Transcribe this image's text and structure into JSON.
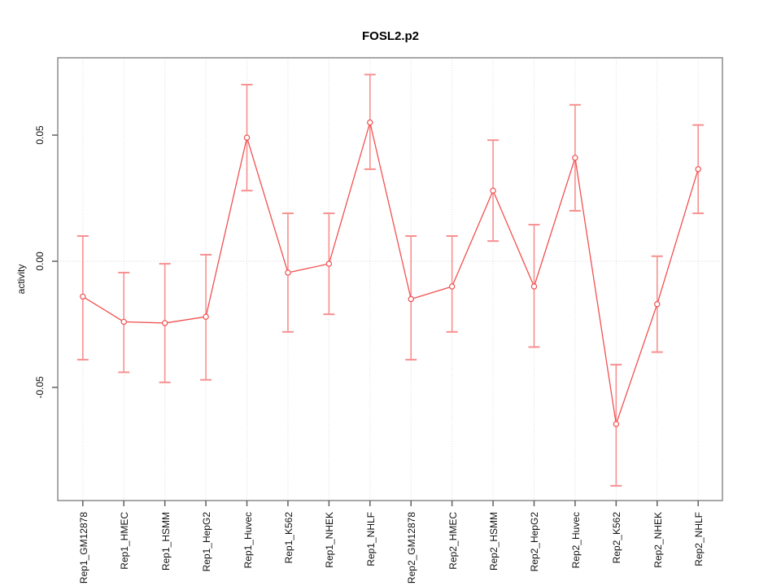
{
  "figure": {
    "background": "#ffffff"
  },
  "chart_data": {
    "type": "line",
    "title": "FOSL2.p2",
    "xlabel": "",
    "ylabel": "activity",
    "legend": "none",
    "grid": {
      "vertical_dotted_per_category": true,
      "zero_line_dotted": true
    },
    "ylim": [
      -0.095,
      0.081
    ],
    "yticks": {
      "values": [
        0.05,
        0.0,
        -0.05
      ],
      "labels": [
        "0.05",
        "0.00",
        "-0.05"
      ]
    },
    "categories": [
      "Rep1_GM12878",
      "Rep1_HMEC",
      "Rep1_HSMM",
      "Rep1_HepG2",
      "Rep1_Huvec",
      "Rep1_K562",
      "Rep1_NHEK",
      "Rep1_NHLF",
      "Rep2_GM12878",
      "Rep2_HMEC",
      "Rep2_HSMM",
      "Rep2_HepG2",
      "Rep2_Huvec",
      "Rep2_K562",
      "Rep2_NHEK",
      "Rep2_NHLF"
    ],
    "series": [
      {
        "name": "activity",
        "marker": "open-circle",
        "values": [
          -0.014,
          -0.024,
          -0.0245,
          -0.022,
          0.049,
          -0.0045,
          -0.001,
          0.055,
          -0.015,
          -0.01,
          0.028,
          -0.01,
          0.041,
          -0.0645,
          -0.017,
          0.0365
        ],
        "error_upper": [
          0.01,
          -0.0045,
          -0.001,
          0.0026,
          0.07,
          0.019,
          0.019,
          0.074,
          0.01,
          0.01,
          0.048,
          0.0145,
          0.062,
          -0.041,
          0.002,
          0.054
        ],
        "error_lower": [
          -0.039,
          -0.044,
          -0.048,
          -0.047,
          0.028,
          -0.028,
          -0.021,
          0.0365,
          -0.039,
          -0.028,
          0.008,
          -0.034,
          0.02,
          -0.089,
          -0.036,
          0.019
        ]
      }
    ],
    "colors": {
      "line": "#f25050",
      "point": "#f25050",
      "point_fill": "#ffffff",
      "error_bar": "#f89090",
      "grid": "#dcdcdc",
      "zero_line": "#d8d8d8",
      "frame": "#8c8c8c",
      "tick": "#606060",
      "text": "#111111"
    }
  }
}
